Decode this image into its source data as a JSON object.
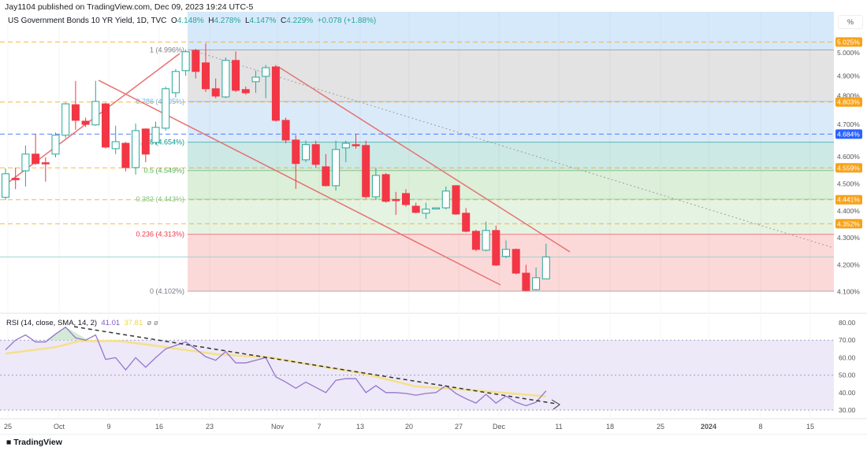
{
  "header": {
    "published": "Jay1104 published on TradingView.com, Dec 09, 2023 19:24 UTC-5"
  },
  "legend": {
    "symbol": "US Government Bonds 10 YR Yield, 1D, TVC",
    "o_label": "O",
    "o": "4.148%",
    "h_label": "H",
    "h": "4.278%",
    "l_label": "L",
    "l": "4.147%",
    "c_label": "C",
    "c": "4.229%",
    "change": "+0.078 (+1.88%)"
  },
  "rsi_legend": {
    "title": "RSI (14, close, SMA, 14, 2)",
    "rsi_value": "41.01",
    "sma_value": "37.81",
    "extra1": "ø",
    "extra2": "ø"
  },
  "axis": {
    "unit_button": "%",
    "price_ticks": [
      "5.000%",
      "4.900%",
      "4.800%",
      "4.700%",
      "4.600%",
      "4.500%",
      "4.400%",
      "4.300%",
      "4.200%",
      "4.100%"
    ],
    "rsi_ticks": [
      "80.00",
      "70.00",
      "60.00",
      "50.00",
      "40.00",
      "30.00"
    ],
    "x_ticks": [
      "25",
      "Oct",
      "9",
      "16",
      "23",
      "Nov",
      "7",
      "13",
      "20",
      "27",
      "Dec",
      "11",
      "18",
      "25",
      "2024",
      "8",
      "15"
    ]
  },
  "badges": [
    {
      "label": "5.025%",
      "value": 5.025,
      "color": "#f7a21b"
    },
    {
      "label": "4.803%",
      "value": 4.803,
      "color": "#f7a21b"
    },
    {
      "label": "4.684%",
      "value": 4.684,
      "color": "#2962ff"
    },
    {
      "label": "4.559%",
      "value": 4.559,
      "color": "#f7a21b"
    },
    {
      "label": "4.441%",
      "value": 4.441,
      "color": "#f7a21b"
    },
    {
      "label": "4.352%",
      "value": 4.352,
      "color": "#f7a21b"
    }
  ],
  "fib": [
    {
      "label": "1 (4.996%)",
      "value": 4.996,
      "color": "#787b86"
    },
    {
      "label": "0.786 (4.805%)",
      "value": 4.805,
      "color": "#64b5f6"
    },
    {
      "label": "0.618 (4.654%)",
      "value": 4.654,
      "color": "#009688"
    },
    {
      "label": "0.5 (4.549%)",
      "value": 4.549,
      "color": "#4caf50"
    },
    {
      "label": "0.382 (4.443%)",
      "value": 4.443,
      "color": "#81c784"
    },
    {
      "label": "0.236 (4.313%)",
      "value": 4.313,
      "color": "#f23645"
    },
    {
      "label": "0 (4.102%)",
      "value": 4.102,
      "color": "#787b86"
    }
  ],
  "colors": {
    "up": "#26a69a",
    "down": "#f23645",
    "rsi": "#7e57c2",
    "sma": "#f5e08a"
  },
  "chart_data": {
    "type": "candlestick",
    "title": "US Government Bonds 10 YR Yield, 1D, TVC",
    "ylim": [
      4.05,
      5.05
    ],
    "ohlc": [
      [
        4.45,
        4.557,
        4.44,
        4.537
      ],
      [
        4.52,
        4.56,
        4.48,
        4.515
      ],
      [
        4.548,
        4.642,
        4.49,
        4.61
      ],
      [
        4.61,
        4.685,
        4.57,
        4.575
      ],
      [
        4.578,
        4.598,
        4.508,
        4.575
      ],
      [
        4.61,
        4.69,
        4.598,
        4.68
      ],
      [
        4.68,
        4.8,
        4.67,
        4.796
      ],
      [
        4.793,
        4.881,
        4.7,
        4.735
      ],
      [
        4.732,
        4.745,
        4.71,
        4.72
      ],
      [
        4.718,
        4.881,
        4.715,
        4.805
      ],
      [
        4.796,
        4.8,
        4.63,
        4.636
      ],
      [
        4.63,
        4.715,
        4.61,
        4.656
      ],
      [
        4.65,
        4.655,
        4.546,
        4.56
      ],
      [
        4.56,
        4.723,
        4.534,
        4.697
      ],
      [
        4.703,
        4.705,
        4.58,
        4.61
      ],
      [
        4.653,
        4.73,
        4.645,
        4.709
      ],
      [
        4.706,
        4.86,
        4.697,
        4.852
      ],
      [
        4.837,
        4.925,
        4.82,
        4.916
      ],
      [
        4.919,
        4.997,
        4.9,
        4.989
      ],
      [
        4.994,
        5.0,
        4.89,
        4.916
      ],
      [
        4.948,
        5.02,
        4.84,
        4.852
      ],
      [
        4.852,
        4.89,
        4.817,
        4.825
      ],
      [
        4.822,
        4.968,
        4.817,
        4.957
      ],
      [
        4.957,
        4.99,
        4.84,
        4.846
      ],
      [
        4.849,
        4.86,
        4.83,
        4.837
      ],
      [
        4.878,
        4.919,
        4.837,
        4.895
      ],
      [
        4.898,
        4.94,
        4.817,
        4.93
      ],
      [
        4.933,
        4.94,
        4.73,
        4.735
      ],
      [
        4.735,
        4.745,
        4.65,
        4.662
      ],
      [
        4.662,
        4.68,
        4.481,
        4.575
      ],
      [
        4.589,
        4.66,
        4.58,
        4.645
      ],
      [
        4.645,
        4.66,
        4.56,
        4.572
      ],
      [
        4.563,
        4.61,
        4.49,
        4.493
      ],
      [
        4.493,
        4.66,
        4.475,
        4.627
      ],
      [
        4.633,
        4.66,
        4.58,
        4.65
      ],
      [
        4.645,
        4.685,
        4.63,
        4.642
      ],
      [
        4.642,
        4.66,
        4.445,
        4.452
      ],
      [
        4.452,
        4.56,
        4.44,
        4.531
      ],
      [
        4.534,
        4.54,
        4.43,
        4.435
      ],
      [
        4.442,
        4.47,
        4.385,
        4.44
      ],
      [
        4.464,
        4.48,
        4.415,
        4.423
      ],
      [
        4.417,
        4.43,
        4.39,
        4.394
      ],
      [
        4.391,
        4.43,
        4.37,
        4.406
      ],
      [
        4.408,
        4.412,
        4.405,
        4.411
      ],
      [
        4.411,
        4.49,
        4.405,
        4.473
      ],
      [
        4.493,
        4.495,
        4.385,
        4.388
      ],
      [
        4.391,
        4.41,
        4.32,
        4.324
      ],
      [
        4.324,
        4.33,
        4.25,
        4.257
      ],
      [
        4.254,
        4.36,
        4.25,
        4.327
      ],
      [
        4.327,
        4.345,
        4.195,
        4.199
      ],
      [
        4.231,
        4.29,
        4.225,
        4.257
      ],
      [
        4.257,
        4.26,
        4.165,
        4.169
      ],
      [
        4.169,
        4.2,
        4.102,
        4.105
      ],
      [
        4.108,
        4.19,
        4.105,
        4.152
      ],
      [
        4.148,
        4.278,
        4.147,
        4.229
      ]
    ],
    "rsi": {
      "ylim": [
        25,
        85
      ],
      "levels": [
        70,
        50,
        30
      ],
      "values": [
        64.5,
        70,
        73,
        69,
        69,
        73.5,
        77.5,
        71.3,
        70,
        73,
        59,
        60,
        53,
        60,
        54.5,
        60,
        65,
        67,
        69,
        65,
        60.5,
        58.5,
        63.5,
        57,
        57,
        58.5,
        60,
        49,
        46,
        42.5,
        46,
        43,
        40,
        47,
        48,
        48,
        40,
        44,
        40,
        40,
        39.5,
        38.5,
        39.5,
        40,
        44,
        39.5,
        36.5,
        34,
        39,
        34,
        38,
        34.5,
        32.5,
        34.5,
        41.01
      ],
      "sma_points": [
        [
          0,
          62.3
        ],
        [
          5,
          66
        ],
        [
          7.4,
          69.5
        ],
        [
          11.4,
          69.5
        ],
        [
          15.4,
          66.5
        ],
        [
          21,
          62
        ],
        [
          26.6,
          60
        ],
        [
          31,
          55.5
        ],
        [
          35.7,
          51
        ],
        [
          41,
          43.5
        ],
        [
          46.5,
          41.5
        ],
        [
          54,
          37.81
        ]
      ]
    }
  },
  "footer": {
    "logo": "TradingView"
  }
}
